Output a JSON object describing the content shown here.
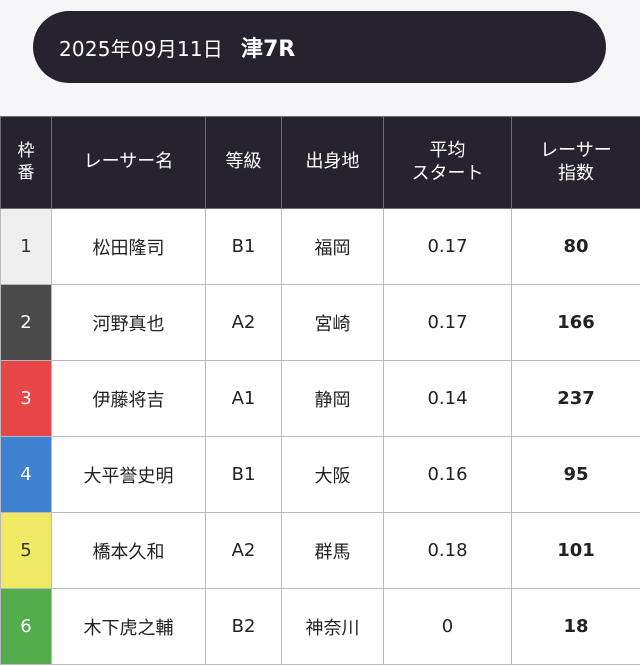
{
  "header": {
    "date": "2025年09月11日",
    "race": "津7R"
  },
  "table": {
    "columns": {
      "frame": [
        "枠",
        "番"
      ],
      "racer": "レーサー名",
      "grade": "等級",
      "origin": "出身地",
      "avg_start": [
        "平均",
        "スタート"
      ],
      "index": [
        "レーサー",
        "指数"
      ]
    },
    "rows": [
      {
        "frame": "1",
        "racer": "松田隆司",
        "grade": "B1",
        "origin": "福岡",
        "avg_start": "0.17",
        "index": "80",
        "frame_color": "#eeeeee",
        "frame_text_color": "#333333"
      },
      {
        "frame": "2",
        "racer": "河野真也",
        "grade": "A2",
        "origin": "宮崎",
        "avg_start": "0.17",
        "index": "166",
        "frame_color": "#4a4a4a",
        "frame_text_color": "#ffffff"
      },
      {
        "frame": "3",
        "racer": "伊藤将吉",
        "grade": "A1",
        "origin": "静岡",
        "avg_start": "0.14",
        "index": "237",
        "frame_color": "#e8474a",
        "frame_text_color": "#ffffff"
      },
      {
        "frame": "4",
        "racer": "大平誉史明",
        "grade": "B1",
        "origin": "大阪",
        "avg_start": "0.16",
        "index": "95",
        "frame_color": "#3f82d2",
        "frame_text_color": "#ffffff"
      },
      {
        "frame": "5",
        "racer": "橋本久和",
        "grade": "A2",
        "origin": "群馬",
        "avg_start": "0.18",
        "index": "101",
        "frame_color": "#efe964",
        "frame_text_color": "#333333"
      },
      {
        "frame": "6",
        "racer": "木下虎之輔",
        "grade": "B2",
        "origin": "神奈川",
        "avg_start": "0",
        "index": "18",
        "frame_color": "#53ad4b",
        "frame_text_color": "#ffffff"
      }
    ]
  }
}
